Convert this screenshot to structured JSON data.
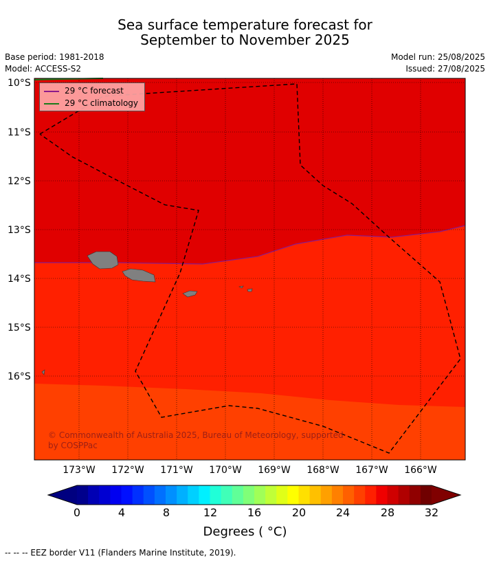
{
  "title_line1": "Sea surface temperature forecast for",
  "title_line2": "September to November 2025",
  "base_period": "Base period: 1981-2018",
  "model": "Model: ACCESS-S2",
  "model_run": "Model run: 25/08/2025",
  "issued": "Issued: 27/08/2025",
  "legend": {
    "forecast": "29 °C  forecast",
    "climatology": "29 °C  climatology",
    "forecast_color": "#8b1a8b",
    "climatology_color": "#1a7a1a"
  },
  "copyright_line1": "© Commonwealth of Australia 2025, Bureau of Meteorology, supported",
  "copyright_line2": "by COSPPac",
  "lat_labels": [
    "10°S",
    "11°S",
    "12°S",
    "13°S",
    "14°S",
    "15°S",
    "16°S"
  ],
  "lon_labels": [
    "173°W",
    "172°W",
    "171°W",
    "170°W",
    "169°W",
    "168°W",
    "167°W",
    "166°W"
  ],
  "colorbar": {
    "ticks": [
      "0",
      "4",
      "8",
      "12",
      "16",
      "20",
      "24",
      "28",
      "32"
    ],
    "title": "Degrees ( °C)",
    "colors": [
      "#00008c",
      "#0000b4",
      "#0000d2",
      "#0000f0",
      "#0010ff",
      "#0030ff",
      "#0050ff",
      "#0070ff",
      "#0090ff",
      "#00b0ff",
      "#00d0ff",
      "#00f0ff",
      "#20ffd8",
      "#40ffb8",
      "#60ff98",
      "#80ff78",
      "#a0ff58",
      "#c0ff38",
      "#e0ff18",
      "#ffff00",
      "#ffe000",
      "#ffc000",
      "#ffa000",
      "#ff8000",
      "#ff6000",
      "#ff4000",
      "#ff2000",
      "#f00000",
      "#d00000",
      "#b00000",
      "#900000",
      "#700000"
    ]
  },
  "regions": {
    "warm_color": "#e00000",
    "mid_color": "#ff2000",
    "cool_color": "#ff4000",
    "land_color": "#808080"
  },
  "footnote": "-- -- -- EEZ border V11 (Flanders Marine Institute, 2019)."
}
